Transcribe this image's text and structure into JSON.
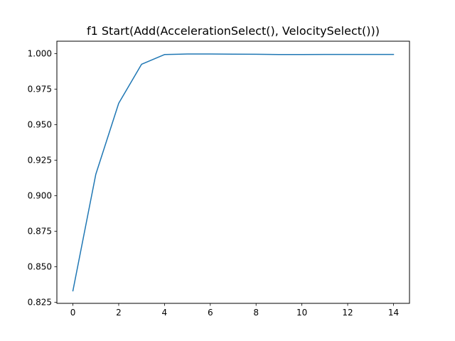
{
  "chart_data": {
    "type": "line",
    "title": "f1 Start(Add(AccelerationSelect(), VelocitySelect()))",
    "xlabel": "",
    "ylabel": "",
    "xlim": [
      -0.7,
      14.7
    ],
    "ylim": [
      0.8242,
      1.0087
    ],
    "x_ticks": [
      0,
      2,
      4,
      6,
      8,
      10,
      12,
      14
    ],
    "x_tick_labels": [
      "0",
      "2",
      "4",
      "6",
      "8",
      "10",
      "12",
      "14"
    ],
    "y_ticks": [
      0.825,
      0.85,
      0.875,
      0.9,
      0.925,
      0.95,
      0.975,
      1.0
    ],
    "y_tick_labels": [
      "0.825",
      "0.850",
      "0.875",
      "0.900",
      "0.925",
      "0.950",
      "0.975",
      "1.000"
    ],
    "grid": false,
    "series": [
      {
        "color": "#1f77b4",
        "x": [
          0,
          1,
          2,
          3,
          4,
          5,
          6,
          7,
          8,
          9,
          10,
          11,
          12,
          13,
          14
        ],
        "y": [
          0.833,
          0.915,
          0.965,
          0.9925,
          0.9993,
          0.9997,
          0.9997,
          0.9996,
          0.9995,
          0.9993,
          0.9993,
          0.9994,
          0.9994,
          0.9994,
          0.9994
        ]
      }
    ]
  }
}
